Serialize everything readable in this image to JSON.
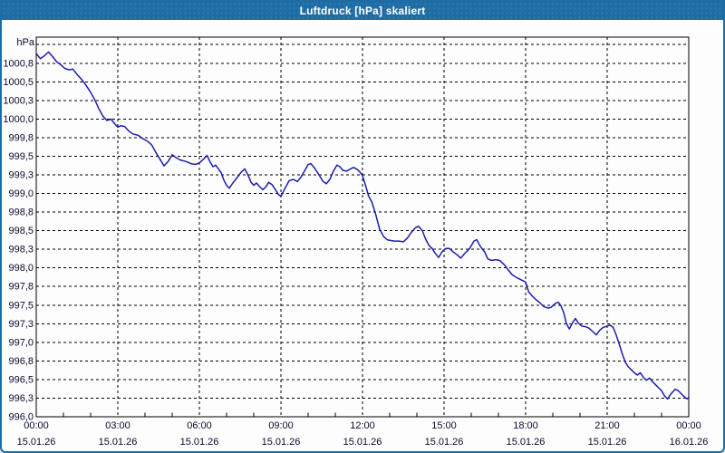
{
  "window": {
    "title": "Luftdruck [hPa] skaliert"
  },
  "colors": {
    "titlebar": "#1d6ca4",
    "frame": "#1d6ca4",
    "series_line": "#1c1cb0",
    "grid": "#000000",
    "tick_text": "#0a0a30",
    "plot_background": "#ffffff"
  },
  "chart_data": {
    "type": "line",
    "title": "Luftdruck [hPa] skaliert",
    "ylabel": "hPa",
    "unit_label": "hPa",
    "legend": "none",
    "grid_on": true,
    "xlim_hours": [
      0,
      24
    ],
    "ylim": [
      996.0,
      1001.1
    ],
    "grid": {
      "y_step": 0.25,
      "y_top_unlabeled_line": 1001.0,
      "x_step_hours": 3,
      "minor_tick_hours": 1
    },
    "y_ticks": [
      {
        "value": 1000.75,
        "label": "1000,8"
      },
      {
        "value": 1000.5,
        "label": "1000,5"
      },
      {
        "value": 1000.25,
        "label": "1000,3"
      },
      {
        "value": 1000.0,
        "label": "1000,0"
      },
      {
        "value": 999.75,
        "label": "999,8"
      },
      {
        "value": 999.5,
        "label": "999,5"
      },
      {
        "value": 999.25,
        "label": "999,3"
      },
      {
        "value": 999.0,
        "label": "999,0"
      },
      {
        "value": 998.75,
        "label": "998,8"
      },
      {
        "value": 998.5,
        "label": "998,5"
      },
      {
        "value": 998.25,
        "label": "998,3"
      },
      {
        "value": 998.0,
        "label": "998,0"
      },
      {
        "value": 997.75,
        "label": "997,8"
      },
      {
        "value": 997.5,
        "label": "997,5"
      },
      {
        "value": 997.25,
        "label": "997,3"
      },
      {
        "value": 997.0,
        "label": "997,0"
      },
      {
        "value": 996.75,
        "label": "996,8"
      },
      {
        "value": 996.5,
        "label": "996,5"
      },
      {
        "value": 996.25,
        "label": "996,3"
      },
      {
        "value": 996.0,
        "label": "996,0"
      }
    ],
    "x_ticks": [
      {
        "hour": 0,
        "time": "00:00",
        "date": "15.01.26"
      },
      {
        "hour": 3,
        "time": "03:00",
        "date": "15.01.26"
      },
      {
        "hour": 6,
        "time": "06:00",
        "date": "15.01.26"
      },
      {
        "hour": 9,
        "time": "09:00",
        "date": "15.01.26"
      },
      {
        "hour": 12,
        "time": "12:00",
        "date": "15.01.26"
      },
      {
        "hour": 15,
        "time": "15:00",
        "date": "15.01.26"
      },
      {
        "hour": 18,
        "time": "18:00",
        "date": "15.01.26"
      },
      {
        "hour": 21,
        "time": "21:00",
        "date": "15.01.26"
      },
      {
        "hour": 24,
        "time": "00:00",
        "date": "16.01.26"
      }
    ],
    "series": [
      {
        "name": "Luftdruck",
        "unit": "hPa",
        "color": "#1c1cb0",
        "points": [
          [
            0,
            1000.88
          ],
          [
            0.15,
            1000.81
          ],
          [
            0.3,
            1000.85
          ],
          [
            0.45,
            1000.9
          ],
          [
            0.6,
            1000.84
          ],
          [
            0.75,
            1000.77
          ],
          [
            0.9,
            1000.73
          ],
          [
            1.05,
            1000.68
          ],
          [
            1.2,
            1000.66
          ],
          [
            1.35,
            1000.67
          ],
          [
            1.5,
            1000.6
          ],
          [
            1.65,
            1000.54
          ],
          [
            1.8,
            1000.47
          ],
          [
            2,
            1000.36
          ],
          [
            2.15,
            1000.26
          ],
          [
            2.3,
            1000.14
          ],
          [
            2.45,
            1000.04
          ],
          [
            2.6,
            999.98
          ],
          [
            2.75,
            1000.0
          ],
          [
            2.9,
            999.93
          ],
          [
            3,
            999.89
          ],
          [
            3.1,
            999.91
          ],
          [
            3.25,
            999.9
          ],
          [
            3.4,
            999.84
          ],
          [
            3.55,
            999.8
          ],
          [
            3.75,
            999.78
          ],
          [
            3.95,
            999.73
          ],
          [
            4.1,
            999.7
          ],
          [
            4.25,
            999.65
          ],
          [
            4.4,
            999.55
          ],
          [
            4.55,
            999.46
          ],
          [
            4.7,
            999.37
          ],
          [
            4.85,
            999.43
          ],
          [
            5,
            999.52
          ],
          [
            5.15,
            999.48
          ],
          [
            5.3,
            999.45
          ],
          [
            5.5,
            999.43
          ],
          [
            5.7,
            999.4
          ],
          [
            5.85,
            999.39
          ],
          [
            6,
            999.41
          ],
          [
            6.15,
            999.46
          ],
          [
            6.28,
            999.51
          ],
          [
            6.4,
            999.42
          ],
          [
            6.5,
            999.36
          ],
          [
            6.6,
            999.38
          ],
          [
            6.7,
            999.33
          ],
          [
            6.8,
            999.28
          ],
          [
            6.9,
            999.18
          ],
          [
            7,
            999.11
          ],
          [
            7.1,
            999.07
          ],
          [
            7.25,
            999.15
          ],
          [
            7.4,
            999.22
          ],
          [
            7.55,
            999.29
          ],
          [
            7.67,
            999.33
          ],
          [
            7.8,
            999.24
          ],
          [
            7.9,
            999.15
          ],
          [
            8,
            999.11
          ],
          [
            8.1,
            999.14
          ],
          [
            8.22,
            999.09
          ],
          [
            8.33,
            999.05
          ],
          [
            8.45,
            999.09
          ],
          [
            8.55,
            999.15
          ],
          [
            8.67,
            999.12
          ],
          [
            8.8,
            999.05
          ],
          [
            8.9,
            998.99
          ],
          [
            9,
            998.96
          ],
          [
            9.15,
            999.07
          ],
          [
            9.3,
            999.17
          ],
          [
            9.45,
            999.19
          ],
          [
            9.6,
            999.16
          ],
          [
            9.72,
            999.21
          ],
          [
            9.88,
            999.31
          ],
          [
            10,
            999.39
          ],
          [
            10.1,
            999.4
          ],
          [
            10.22,
            999.35
          ],
          [
            10.4,
            999.25
          ],
          [
            10.55,
            999.16
          ],
          [
            10.67,
            999.13
          ],
          [
            10.8,
            999.19
          ],
          [
            10.93,
            999.3
          ],
          [
            11.06,
            999.38
          ],
          [
            11.17,
            999.36
          ],
          [
            11.28,
            999.31
          ],
          [
            11.42,
            999.3
          ],
          [
            11.56,
            999.33
          ],
          [
            11.67,
            999.35
          ],
          [
            11.78,
            999.33
          ],
          [
            11.9,
            999.29
          ],
          [
            12,
            999.24
          ],
          [
            12.11,
            999.11
          ],
          [
            12.22,
            998.97
          ],
          [
            12.35,
            998.88
          ],
          [
            12.5,
            998.7
          ],
          [
            12.63,
            998.52
          ],
          [
            12.78,
            998.42
          ],
          [
            12.9,
            998.38
          ],
          [
            13,
            998.37
          ],
          [
            13.17,
            998.36
          ],
          [
            13.33,
            998.36
          ],
          [
            13.5,
            998.35
          ],
          [
            13.65,
            998.4
          ],
          [
            13.8,
            998.48
          ],
          [
            13.95,
            998.54
          ],
          [
            14.06,
            998.56
          ],
          [
            14.2,
            998.5
          ],
          [
            14.33,
            998.38
          ],
          [
            14.45,
            998.3
          ],
          [
            14.56,
            998.26
          ],
          [
            14.67,
            998.2
          ],
          [
            14.8,
            998.14
          ],
          [
            14.93,
            998.22
          ],
          [
            15.06,
            998.26
          ],
          [
            15.2,
            998.26
          ],
          [
            15.35,
            998.21
          ],
          [
            15.5,
            998.17
          ],
          [
            15.61,
            998.13
          ],
          [
            15.75,
            998.19
          ],
          [
            15.94,
            998.26
          ],
          [
            16.1,
            998.36
          ],
          [
            16.2,
            998.38
          ],
          [
            16.35,
            998.28
          ],
          [
            16.5,
            998.21
          ],
          [
            16.61,
            998.12
          ],
          [
            16.75,
            998.1
          ],
          [
            16.9,
            998.11
          ],
          [
            17.05,
            998.1
          ],
          [
            17.22,
            998.04
          ],
          [
            17.39,
            997.96
          ],
          [
            17.5,
            997.91
          ],
          [
            17.67,
            997.87
          ],
          [
            17.83,
            997.84
          ],
          [
            18,
            997.81
          ],
          [
            18.11,
            997.68
          ],
          [
            18.25,
            997.62
          ],
          [
            18.39,
            997.57
          ],
          [
            18.5,
            997.54
          ],
          [
            18.67,
            997.48
          ],
          [
            18.83,
            997.46
          ],
          [
            18.94,
            997.47
          ],
          [
            19.08,
            997.52
          ],
          [
            19.2,
            997.54
          ],
          [
            19.3,
            997.49
          ],
          [
            19.4,
            997.4
          ],
          [
            19.5,
            997.25
          ],
          [
            19.61,
            997.18
          ],
          [
            19.72,
            997.26
          ],
          [
            19.83,
            997.32
          ],
          [
            19.94,
            997.26
          ],
          [
            20.06,
            997.22
          ],
          [
            20.2,
            997.21
          ],
          [
            20.33,
            997.19
          ],
          [
            20.45,
            997.15
          ],
          [
            20.6,
            997.1
          ],
          [
            20.72,
            997.16
          ],
          [
            20.85,
            997.2
          ],
          [
            21,
            997.22
          ],
          [
            21.11,
            997.23
          ],
          [
            21.22,
            997.2
          ],
          [
            21.33,
            997.1
          ],
          [
            21.44,
            996.98
          ],
          [
            21.56,
            996.84
          ],
          [
            21.67,
            996.73
          ],
          [
            21.78,
            996.67
          ],
          [
            21.89,
            996.63
          ],
          [
            22,
            996.59
          ],
          [
            22.11,
            996.56
          ],
          [
            22.22,
            996.59
          ],
          [
            22.33,
            996.53
          ],
          [
            22.44,
            996.49
          ],
          [
            22.56,
            996.52
          ],
          [
            22.67,
            996.47
          ],
          [
            22.78,
            996.43
          ],
          [
            22.89,
            996.39
          ],
          [
            23,
            996.35
          ],
          [
            23.11,
            996.28
          ],
          [
            23.22,
            996.24
          ],
          [
            23.33,
            996.3
          ],
          [
            23.5,
            996.37
          ],
          [
            23.61,
            996.35
          ],
          [
            23.72,
            996.31
          ],
          [
            23.83,
            996.27
          ],
          [
            23.94,
            996.24
          ],
          [
            24,
            996.26
          ]
        ]
      }
    ]
  }
}
